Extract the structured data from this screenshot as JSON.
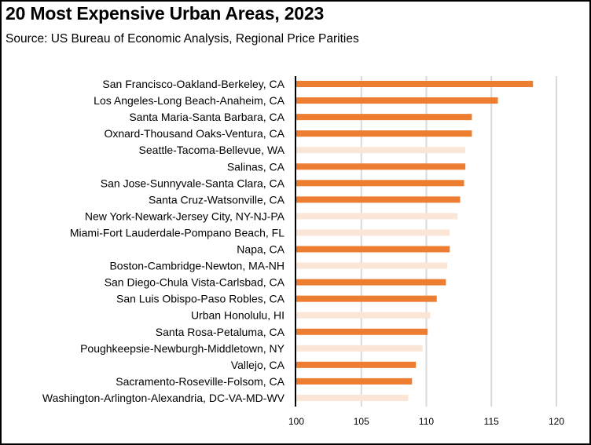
{
  "chart_data": {
    "type": "bar",
    "orientation": "horizontal",
    "title": "20 Most Expensive Urban Areas, 2023",
    "subtitle": "Source:  US Bureau of Economic Analysis, Regional Price Parities",
    "xlabel": "",
    "ylabel": "",
    "xlim": [
      100,
      122
    ],
    "xticks": [
      100,
      105,
      110,
      115,
      120
    ],
    "grid": true,
    "legend": "none",
    "colors": {
      "california": "#ED7D31",
      "other": "#FBE5D6",
      "gridline": "#D9D9D9",
      "axis": "#000000"
    },
    "categories": [
      "San Francisco-Oakland-Berkeley, CA",
      "Los Angeles-Long Beach-Anaheim, CA",
      "Santa Maria-Santa Barbara, CA",
      "Oxnard-Thousand Oaks-Ventura, CA",
      "Seattle-Tacoma-Bellevue, WA",
      "Salinas, CA",
      "San Jose-Sunnyvale-Santa Clara, CA",
      "Santa Cruz-Watsonville, CA",
      "New York-Newark-Jersey City, NY-NJ-PA",
      "Miami-Fort Lauderdale-Pompano Beach, FL",
      "Napa, CA",
      "Boston-Cambridge-Newton, MA-NH",
      "San Diego-Chula Vista-Carlsbad, CA",
      "San Luis Obispo-Paso Robles, CA",
      "Urban Honolulu, HI",
      "Santa Rosa-Petaluma, CA",
      "Poughkeepsie-Newburgh-Middletown, NY",
      "Vallejo, CA",
      "Sacramento-Roseville-Folsom, CA",
      "Washington-Arlington-Alexandria, DC-VA-MD-WV"
    ],
    "values": [
      118.2,
      115.5,
      113.5,
      113.5,
      113.0,
      113.0,
      112.9,
      112.6,
      112.4,
      111.8,
      111.8,
      111.6,
      111.5,
      110.8,
      110.3,
      110.1,
      109.7,
      109.2,
      108.9,
      108.6
    ],
    "highlight": [
      true,
      true,
      true,
      true,
      false,
      true,
      true,
      true,
      false,
      false,
      true,
      false,
      true,
      true,
      false,
      true,
      false,
      true,
      true,
      false
    ]
  }
}
